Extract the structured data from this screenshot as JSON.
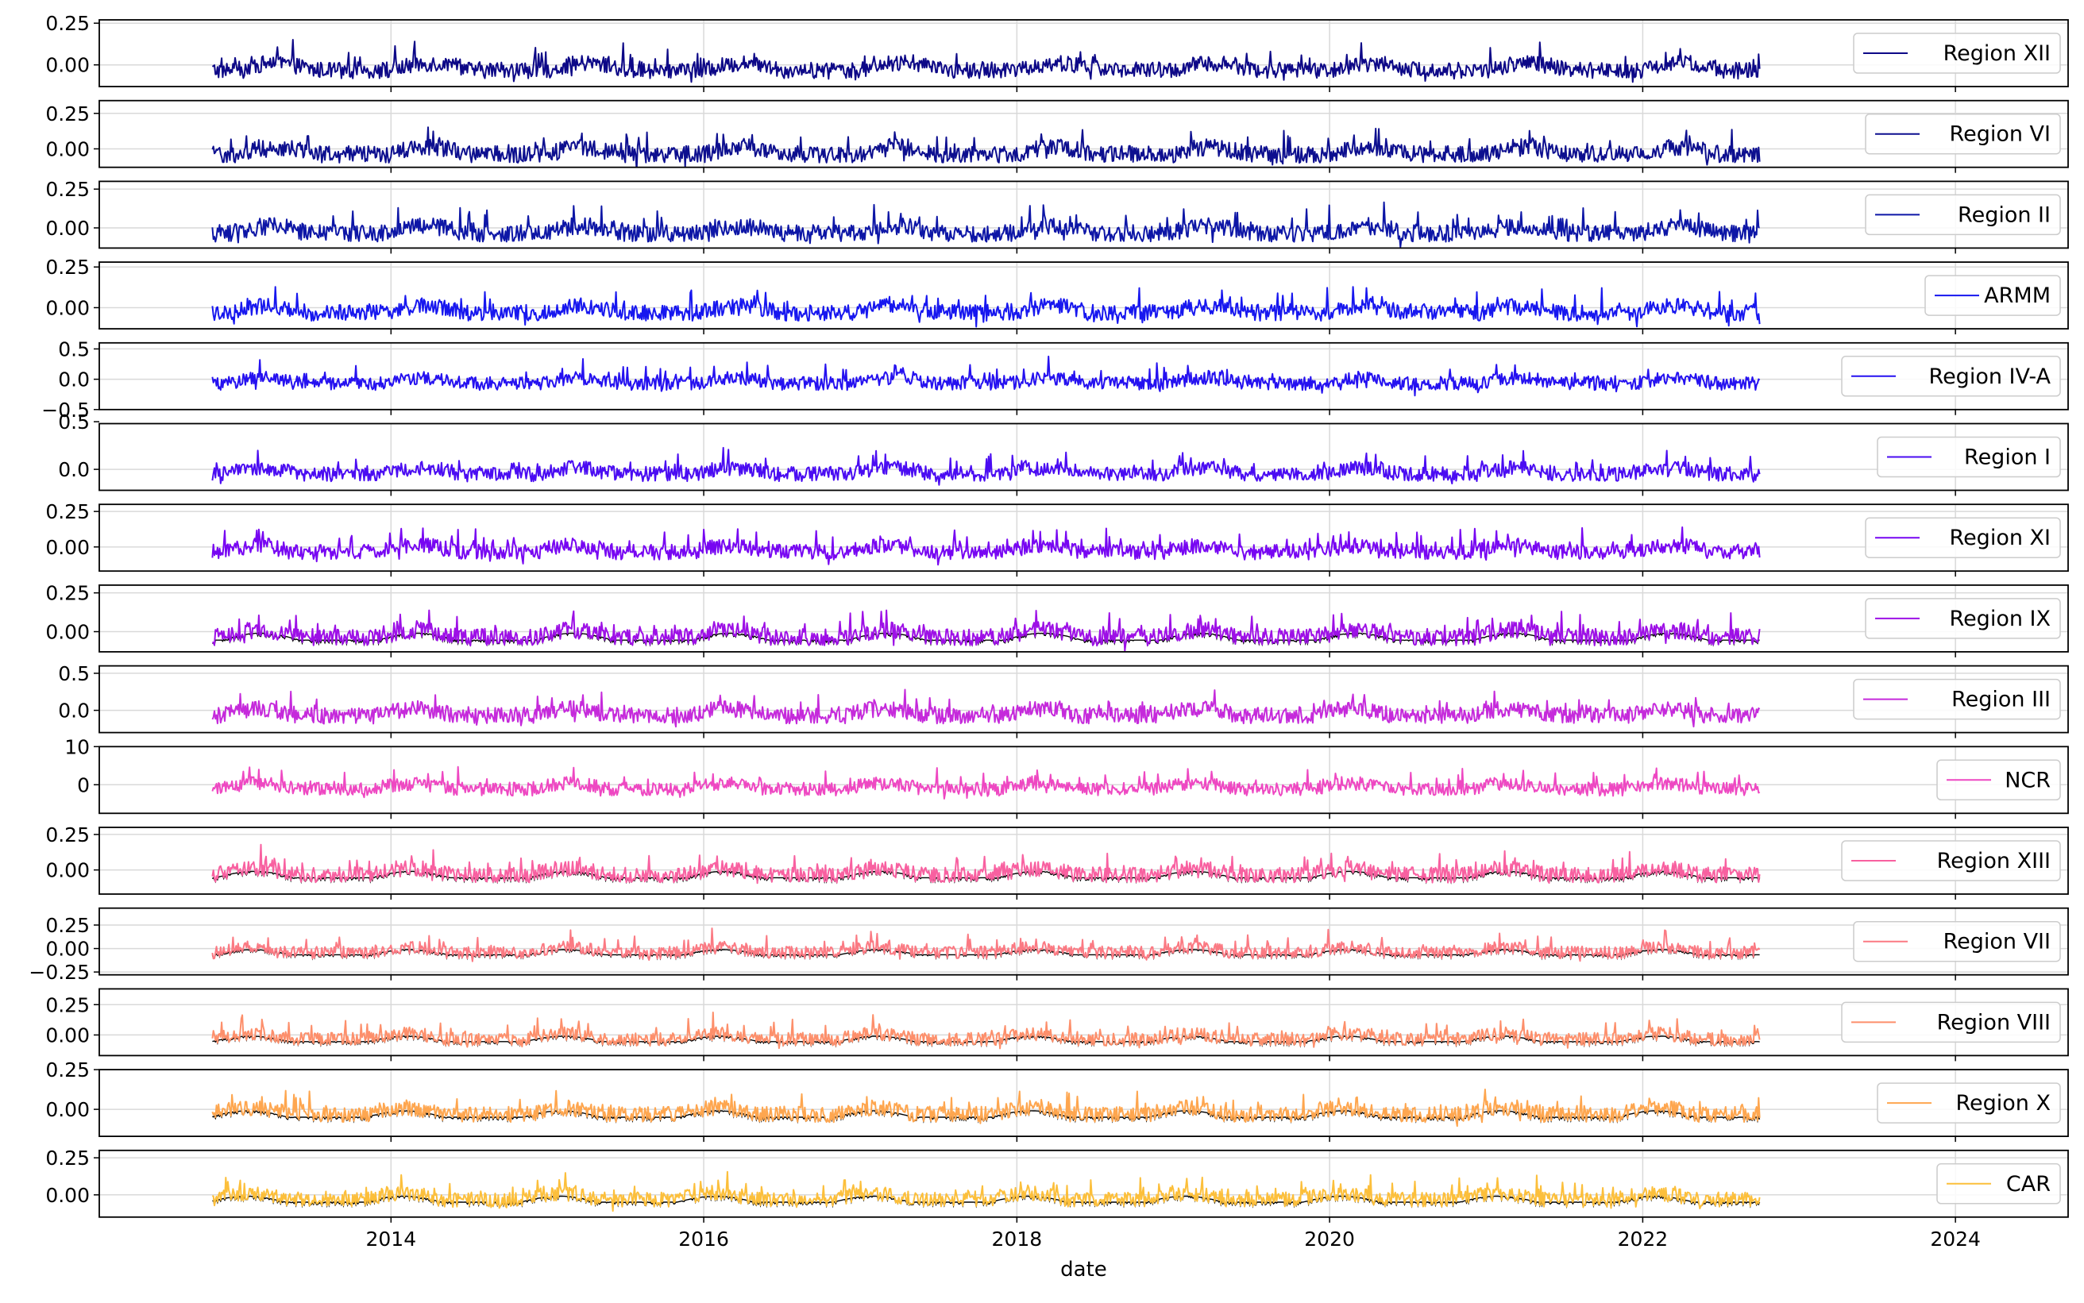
{
  "chart_data": {
    "type": "line",
    "xlabel": "date",
    "x_range": [
      "2012-02-20",
      "2024-09-20"
    ],
    "data_range": [
      "2012-11-10",
      "2022-10-01"
    ],
    "x_ticks": [
      "2014",
      "2016",
      "2018",
      "2020",
      "2022",
      "2024"
    ],
    "grid": true,
    "legend_placement": "right",
    "overlay_line_color": "#000000",
    "panels": [
      {
        "name": "Region XII",
        "color": "#0d0887",
        "ylim": [
          -0.13,
          0.27
        ],
        "yticks": [
          "0.00",
          "0.25"
        ],
        "ytick_values": [
          0,
          0.25
        ],
        "amplitude": 0.09,
        "overlay": false
      },
      {
        "name": "Region VI",
        "color": "#0d0f8f",
        "ylim": [
          -0.13,
          0.34
        ],
        "yticks": [
          "0.00",
          "0.25"
        ],
        "ytick_values": [
          0,
          0.25
        ],
        "amplitude": 0.11,
        "overlay": false
      },
      {
        "name": "Region II",
        "color": "#0d16a6",
        "ylim": [
          -0.13,
          0.3
        ],
        "yticks": [
          "0.00",
          "0.25"
        ],
        "ytick_values": [
          0,
          0.25
        ],
        "amplitude": 0.1,
        "overlay": false
      },
      {
        "name": "ARMM",
        "color": "#1717ef",
        "ylim": [
          -0.13,
          0.28
        ],
        "yticks": [
          "0.00",
          "0.25"
        ],
        "ytick_values": [
          0,
          0.25
        ],
        "amplitude": 0.09,
        "overlay": false
      },
      {
        "name": "Region IV-A",
        "color": "#2511f0",
        "ylim": [
          -0.5,
          0.6
        ],
        "yticks": [
          "0.5",
          "0.0",
          "−0.5"
        ],
        "ytick_values": [
          0.5,
          0,
          -0.5
        ],
        "amplitude": 0.2,
        "overlay": false
      },
      {
        "name": "Region I",
        "color": "#4a0cf2",
        "ylim": [
          -0.22,
          0.48
        ],
        "yticks": [
          "0.0",
          "0.5"
        ],
        "ytick_values": [
          0,
          0.5
        ],
        "amplitude": 0.14,
        "overlay": false
      },
      {
        "name": "Region XI",
        "color": "#7706f2",
        "ylim": [
          -0.17,
          0.3
        ],
        "yticks": [
          "0.00",
          "0.25"
        ],
        "ytick_values": [
          0,
          0.25
        ],
        "amplitude": 0.1,
        "overlay": false
      },
      {
        "name": "Region IX",
        "color": "#9d10e6",
        "ylim": [
          -0.13,
          0.3
        ],
        "yticks": [
          "0.00",
          "0.25"
        ],
        "ytick_values": [
          0,
          0.25
        ],
        "amplitude": 0.1,
        "overlay": true
      },
      {
        "name": "Region III",
        "color": "#c52adb",
        "ylim": [
          -0.3,
          0.6
        ],
        "yticks": [
          "0.0",
          "0.5"
        ],
        "ytick_values": [
          0,
          0.5
        ],
        "amplitude": 0.2,
        "overlay": false
      },
      {
        "name": "NCR",
        "color": "#ee48c2",
        "ylim": [
          -7.5,
          10
        ],
        "yticks": [
          "0",
          "10"
        ],
        "ytick_values": [
          0,
          10
        ],
        "amplitude": 3.2,
        "overlay": false
      },
      {
        "name": "Region XIII",
        "color": "#f860a0",
        "ylim": [
          -0.17,
          0.3
        ],
        "yticks": [
          "0.00",
          "0.25"
        ],
        "ytick_values": [
          0,
          0.25
        ],
        "amplitude": 0.1,
        "overlay": true
      },
      {
        "name": "Region VII",
        "color": "#fb7a83",
        "ylim": [
          -0.28,
          0.43
        ],
        "yticks": [
          "0.25",
          "0.00",
          "−0.25"
        ],
        "ytick_values": [
          0.25,
          0,
          -0.25
        ],
        "amplitude": 0.12,
        "overlay": true
      },
      {
        "name": "Region VIII",
        "color": "#fd8f6b",
        "ylim": [
          -0.17,
          0.38
        ],
        "yticks": [
          "0.00",
          "0.25"
        ],
        "ytick_values": [
          0,
          0.25
        ],
        "amplitude": 0.1,
        "overlay": true
      },
      {
        "name": "Region X",
        "color": "#fea64f",
        "ylim": [
          -0.17,
          0.25
        ],
        "yticks": [
          "0.00",
          "0.25"
        ],
        "ytick_values": [
          0,
          0.25
        ],
        "amplitude": 0.09,
        "overlay": true
      },
      {
        "name": "CAR",
        "color": "#fcbf3b",
        "ylim": [
          -0.15,
          0.3
        ],
        "yticks": [
          "0.00",
          "0.25"
        ],
        "ytick_values": [
          0,
          0.25
        ],
        "amplitude": 0.09,
        "overlay": true
      }
    ]
  }
}
